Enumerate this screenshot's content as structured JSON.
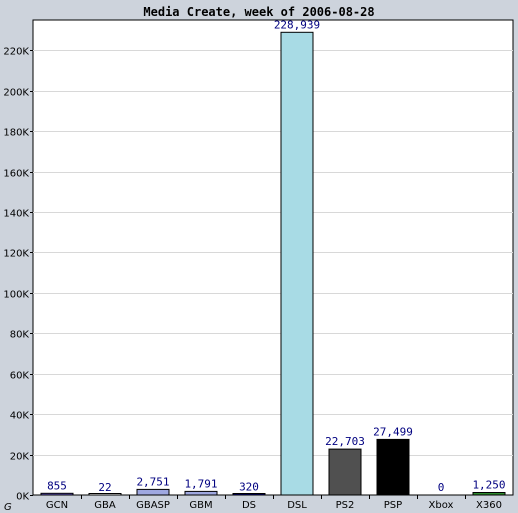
{
  "chart_data": {
    "type": "bar",
    "title": "Media Create, week of 2006-08-28",
    "categories": [
      "GCN",
      "GBA",
      "GBASP",
      "GBM",
      "DS",
      "DSL",
      "PS2",
      "PSP",
      "Xbox",
      "X360"
    ],
    "values": [
      855,
      22,
      2751,
      1791,
      320,
      228939,
      22703,
      27499,
      0,
      1250
    ],
    "value_labels": [
      "855",
      "22",
      "2,751",
      "1,791",
      "320",
      "228,939",
      "22,703",
      "27,499",
      "0",
      "1,250"
    ],
    "colors": [
      "#6a5acd",
      "#ffffff",
      "#9fa8e0",
      "#9fa8e0",
      "#000080",
      "#a8dbe5",
      "#505050",
      "#000000",
      "#ffffff",
      "#2e8b2e"
    ],
    "ylim": [
      0,
      235000
    ],
    "yticks": [
      0,
      20000,
      40000,
      60000,
      80000,
      100000,
      120000,
      140000,
      160000,
      180000,
      200000,
      220000
    ],
    "ytick_labels": [
      "0K",
      "20K",
      "40K",
      "60K",
      "80K",
      "100K",
      "120K",
      "140K",
      "160K",
      "180K",
      "200K",
      "220K"
    ],
    "grid": true,
    "xlabel": "",
    "ylabel": "",
    "corner_mark": "G"
  }
}
